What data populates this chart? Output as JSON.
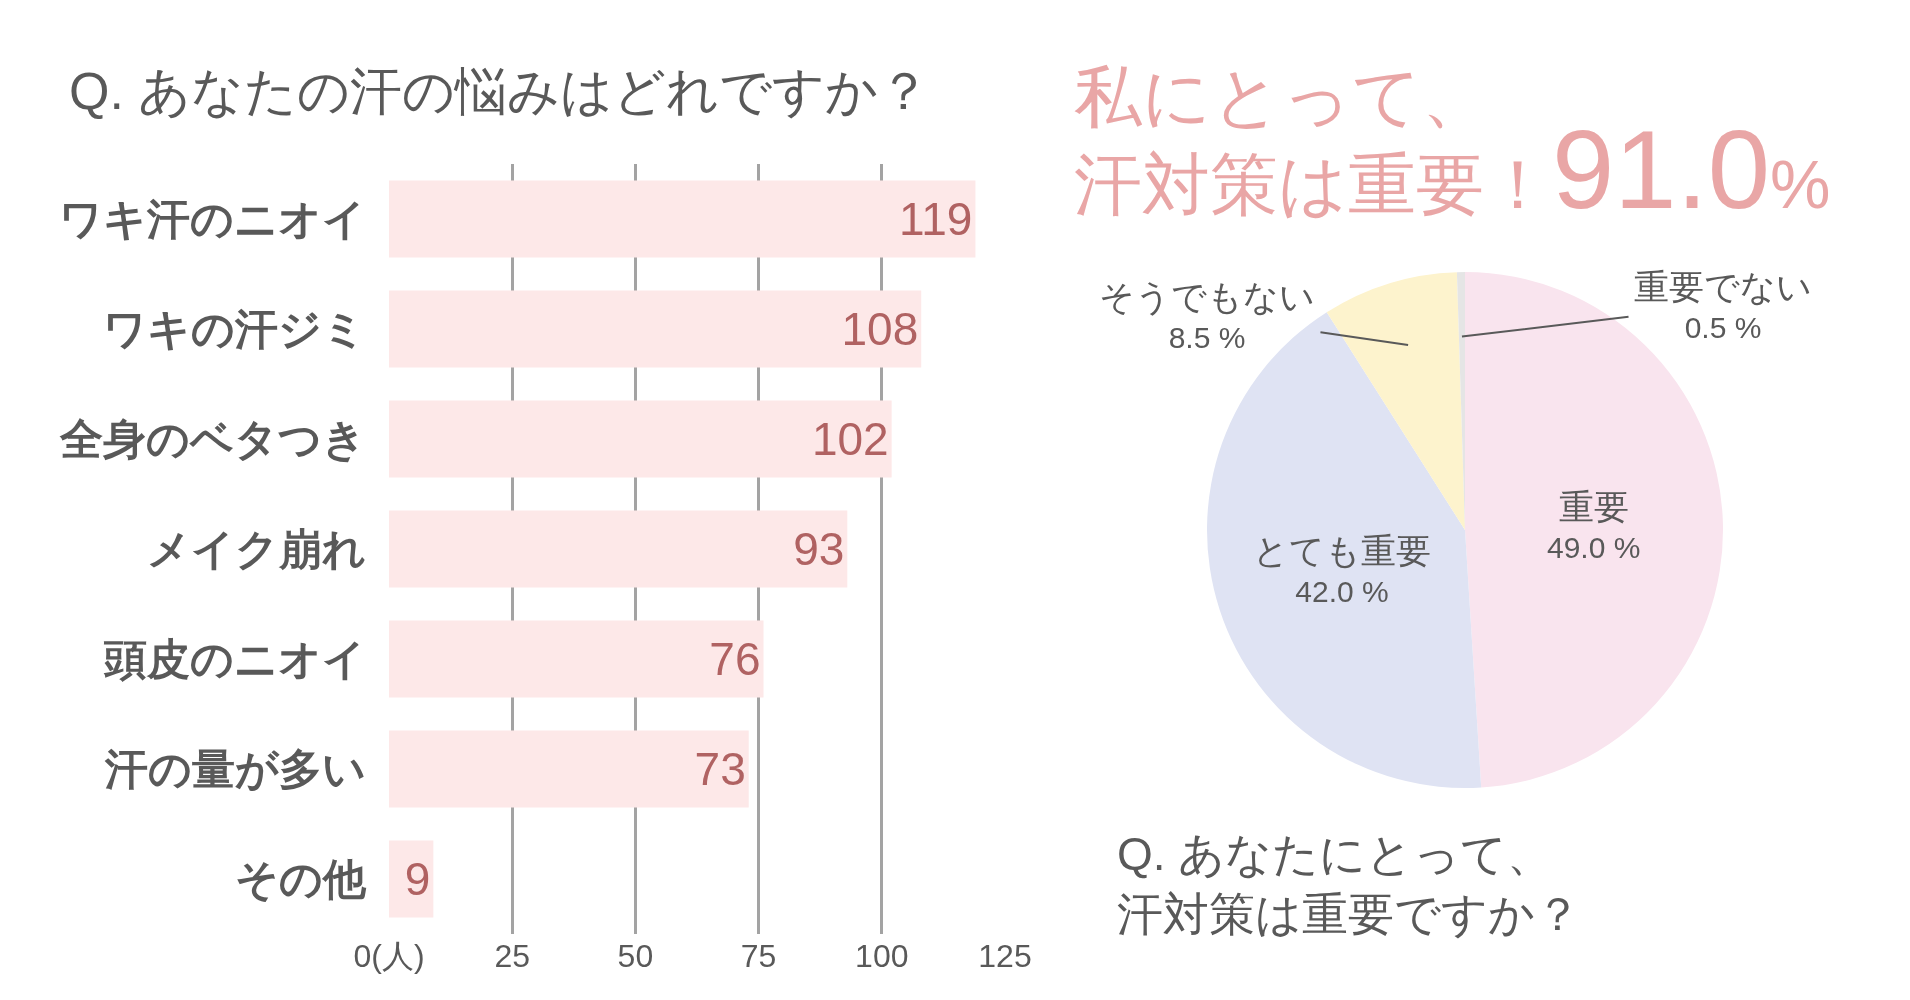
{
  "chart_data": [
    {
      "type": "bar",
      "orientation": "horizontal",
      "title": "Q. あなたの汗の悩みはどれですか？",
      "categories": [
        "ワキ汗のニオイ",
        "ワキの汗ジミ",
        "全身のベタつき",
        "メイク崩れ",
        "頭皮のニオイ",
        "汗の量が多い",
        "その他"
      ],
      "values": [
        119,
        108,
        102,
        93,
        76,
        73,
        9
      ],
      "color": "#fde8e8",
      "xlim": [
        0,
        125
      ],
      "xticks": [
        {
          "value": 0,
          "label": "0(人)"
        },
        25,
        50,
        75,
        100,
        125
      ],
      "grid": "x",
      "data_labels": true
    },
    {
      "type": "pie",
      "title": "私にとって、汗対策は重要！91.0%",
      "categories": [
        "重要",
        "とても重要",
        "そうでもない",
        "重要でない"
      ],
      "values": [
        49.0,
        42.0,
        8.5,
        0.5
      ],
      "colors": [
        "#f9e4ee",
        "#dfe3f3",
        "#fdf3cd",
        "#e5e5e5"
      ],
      "value_labels": [
        "49.0 %",
        "42.0 %",
        "8.5 %",
        "0.5 %"
      ],
      "annotations": [
        "Q. あなたにとって、汗対策は重要ですか？"
      ]
    }
  ]
}
